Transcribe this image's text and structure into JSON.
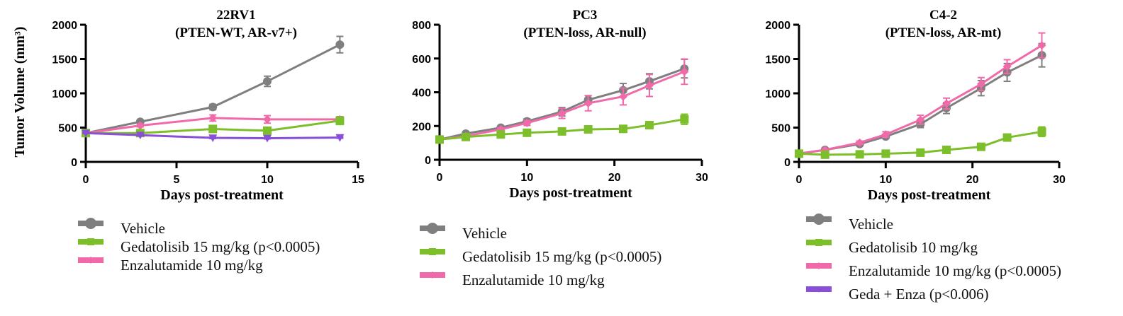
{
  "colors": {
    "vehicle": "#7f7f7f",
    "geda": "#7cbf2a",
    "enza": "#f06aaa",
    "combo": "#8a4fd8"
  },
  "ylabel": "Tumor Volume (mm³)",
  "chart_data": [
    {
      "type": "line",
      "title": "22RV1",
      "subtitle": "(PTEN-WT, AR-v7+)",
      "xlabel": "Days post-treatment",
      "xlim": [
        0,
        15
      ],
      "ylim": [
        0,
        2000
      ],
      "xticks": [
        0,
        5,
        10,
        15
      ],
      "yticks": [
        0,
        500,
        1000,
        1500,
        2000
      ],
      "x": [
        0,
        3,
        7,
        10,
        14
      ],
      "series": [
        {
          "name": "Vehicle",
          "key": "vehicle",
          "marker": "circle",
          "values": [
            420,
            585,
            800,
            1175,
            1710
          ],
          "err": [
            10,
            20,
            40,
            75,
            120
          ]
        },
        {
          "name": "Enzalutamide 10 mg/kg",
          "key": "enza",
          "marker": "diamond",
          "values": [
            420,
            530,
            640,
            620,
            620
          ],
          "err": [
            10,
            20,
            45,
            55,
            40
          ]
        },
        {
          "name": "Gedatolisib 15 mg/kg (p<0.0005)",
          "key": "geda",
          "marker": "square",
          "values": [
            420,
            420,
            480,
            455,
            600
          ],
          "err": [
            10,
            15,
            25,
            25,
            55
          ]
        },
        {
          "name": "Geda + Enza",
          "key": "combo",
          "marker": "triangle",
          "values": [
            420,
            390,
            350,
            345,
            355
          ],
          "err": [
            5,
            10,
            10,
            10,
            10
          ]
        }
      ],
      "legend": [
        {
          "key": "vehicle",
          "label": "Vehicle"
        },
        {
          "key": "geda",
          "label": "Gedatolisib 15 mg/kg (p<0.0005)"
        },
        {
          "key": "enza",
          "label": "Enzalutamide 10 mg/kg"
        }
      ]
    },
    {
      "type": "line",
      "title": "PC3",
      "subtitle": "(PTEN-loss, AR-null)",
      "xlabel": "Days post-treatment",
      "xlim": [
        0,
        30
      ],
      "ylim": [
        0,
        800
      ],
      "xticks": [
        0,
        10,
        20,
        30
      ],
      "yticks": [
        0,
        200,
        400,
        600,
        800
      ],
      "x": [
        0,
        3,
        7,
        10,
        14,
        17,
        21,
        24,
        28
      ],
      "series": [
        {
          "name": "Vehicle",
          "key": "vehicle",
          "marker": "circle",
          "values": [
            120,
            155,
            190,
            228,
            285,
            355,
            412,
            465,
            540
          ],
          "err": [
            5,
            8,
            10,
            15,
            25,
            25,
            40,
            45,
            55
          ]
        },
        {
          "name": "Enzalutamide 10 mg/kg",
          "key": "enza",
          "marker": "diamond",
          "values": [
            120,
            140,
            180,
            218,
            275,
            335,
            375,
            440,
            522
          ],
          "err": [
            5,
            8,
            10,
            15,
            30,
            45,
            50,
            65,
            75
          ]
        },
        {
          "name": "Gedatolisib 15 mg/kg (p<0.0005)",
          "key": "geda",
          "marker": "square",
          "values": [
            120,
            135,
            150,
            160,
            168,
            180,
            183,
            205,
            240
          ],
          "err": [
            5,
            5,
            8,
            8,
            8,
            10,
            15,
            20,
            30
          ]
        }
      ],
      "legend": [
        {
          "key": "vehicle",
          "label": "Vehicle"
        },
        {
          "key": "geda",
          "label": "Gedatolisib 15 mg/kg (p<0.0005)"
        },
        {
          "key": "enza",
          "label": "Enzalutamide 10 mg/kg"
        }
      ]
    },
    {
      "type": "line",
      "title": "C4-2",
      "subtitle": "(PTEN-loss, AR-mt)",
      "xlabel": "Days post-treatment",
      "xlim": [
        0,
        30
      ],
      "ylim": [
        0,
        2000
      ],
      "xticks": [
        0,
        10,
        20,
        30
      ],
      "yticks": [
        0,
        500,
        1000,
        1500,
        2000
      ],
      "x": [
        0,
        3,
        7,
        10,
        14,
        17,
        21,
        24,
        28
      ],
      "series": [
        {
          "name": "Vehicle",
          "key": "vehicle",
          "marker": "circle",
          "values": [
            120,
            175,
            260,
            370,
            550,
            785,
            1075,
            1305,
            1555
          ],
          "err": [
            10,
            15,
            20,
            30,
            50,
            80,
            110,
            130,
            170
          ]
        },
        {
          "name": "Enzalutamide 10 mg/kg (p<0.0005)",
          "key": "enza",
          "marker": "diamond",
          "values": [
            120,
            175,
            280,
            400,
            615,
            850,
            1135,
            1390,
            1700
          ],
          "err": [
            10,
            15,
            25,
            40,
            65,
            80,
            95,
            100,
            180
          ]
        },
        {
          "name": "Gedatolisib 10 mg/kg",
          "key": "geda",
          "marker": "square",
          "values": [
            120,
            105,
            110,
            120,
            135,
            175,
            220,
            355,
            440
          ],
          "err": [
            5,
            5,
            8,
            8,
            10,
            10,
            15,
            30,
            70
          ]
        }
      ],
      "legend": [
        {
          "key": "vehicle",
          "label": "Vehicle"
        },
        {
          "key": "geda",
          "label": "Gedatolisib 10 mg/kg"
        },
        {
          "key": "enza",
          "label": "Enzalutamide 10 mg/kg (p<0.0005)"
        },
        {
          "key": "combo",
          "label": "Geda + Enza (p<0.006)"
        }
      ]
    }
  ]
}
